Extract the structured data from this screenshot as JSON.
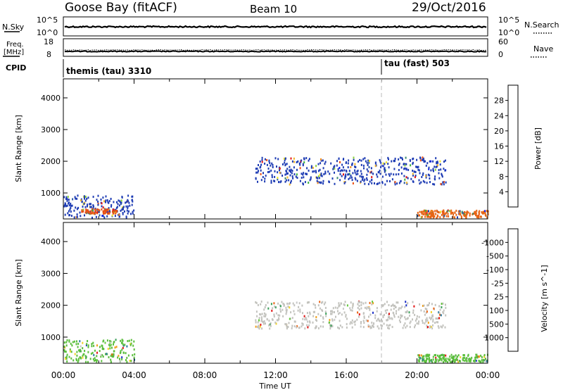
{
  "header": {
    "station": "Goose Bay (fitACF)",
    "beam": "Beam 10",
    "date": "29/Oct/2016"
  },
  "top_panels": {
    "nsky_label": "N.Sky",
    "nsky_ticks": [
      "10^5",
      "10^0"
    ],
    "nsearch_label": "N.Search",
    "nsearch_ticks": [
      "10^5",
      "10^0"
    ],
    "freq_label_1": "Freq.",
    "freq_label_2": "[MHz]",
    "freq_ticks": [
      "18",
      "8"
    ],
    "nave_label": "Nave",
    "nave_ticks": [
      "60",
      "0"
    ],
    "cpid_label": "CPID",
    "cpid_segments": [
      {
        "text": "themis (tau) 3310",
        "start_hour": 0
      },
      {
        "text": "tau (fast) 503",
        "start_hour": 18
      }
    ]
  },
  "chart_data": [
    {
      "type": "heatmap",
      "title": "",
      "quantity": "Power",
      "ylabel": "Slant Range [km]",
      "xlabel": "",
      "ylim": [
        180,
        4600
      ],
      "yticks": [
        "1000",
        "2000",
        "3000",
        "4000"
      ],
      "x_range_hours": [
        0,
        24
      ],
      "colorbar_label": "Power [dB]",
      "colorbar_ticks": [
        "4",
        "8",
        "12",
        "16",
        "20",
        "24",
        "28"
      ],
      "colorbar_colors": [
        "#0a1ef0",
        "#1e3cb4",
        "#2d5aa5",
        "#3c8c6e",
        "#3cb43c",
        "#8cd23c",
        "#f0e628",
        "#f0b428",
        "#f08c1e",
        "#eb5014",
        "#e11414"
      ],
      "scatter_bands": [
        {
          "start_hour": 0.0,
          "end_hour": 4.0,
          "range_min_km": 250,
          "range_max_km": 950,
          "color": "#1e3cb4"
        },
        {
          "start_hour": 1.0,
          "end_hour": 3.0,
          "range_min_km": 380,
          "range_max_km": 520,
          "color": "#e65014"
        },
        {
          "start_hour": 10.8,
          "end_hour": 21.6,
          "range_min_km": 1300,
          "range_max_km": 2150,
          "color": "#1e3cb4"
        },
        {
          "start_hour": 20.0,
          "end_hour": 24.0,
          "range_min_km": 250,
          "range_max_km": 480,
          "color": "#e66414"
        }
      ]
    },
    {
      "type": "heatmap",
      "title": "",
      "quantity": "Velocity",
      "ylabel": "Slant Range [km]",
      "xlabel": "Time UT",
      "ylim": [
        180,
        4600
      ],
      "yticks": [
        "1000",
        "2000",
        "3000",
        "4000"
      ],
      "xticks": [
        "00:00",
        "04:00",
        "08:00",
        "12:00",
        "16:00",
        "20:00",
        "00:00"
      ],
      "x_range_hours": [
        0,
        24
      ],
      "colorbar_label": "Velocity [m s^-1]",
      "colorbar_ticks": [
        "1000",
        "500",
        "100",
        "25",
        "-25",
        "-100",
        "-500",
        "-1000"
      ],
      "colorbar_colors": [
        "#1e32c8",
        "#2878a0",
        "#3ca05a",
        "#64c83c",
        "#c8c8c8",
        "#f0d228",
        "#f0a01e",
        "#eb6414",
        "#e11414"
      ],
      "scatter_bands": [
        {
          "start_hour": 0.0,
          "end_hour": 4.0,
          "range_min_km": 250,
          "range_max_km": 950,
          "color": "#5abe3c"
        },
        {
          "start_hour": 10.8,
          "end_hour": 21.6,
          "range_min_km": 1300,
          "range_max_km": 2150,
          "color": "#c3c3be"
        },
        {
          "start_hour": 20.0,
          "end_hour": 24.0,
          "range_min_km": 250,
          "range_max_km": 480,
          "color": "#5abe3c"
        }
      ]
    }
  ]
}
